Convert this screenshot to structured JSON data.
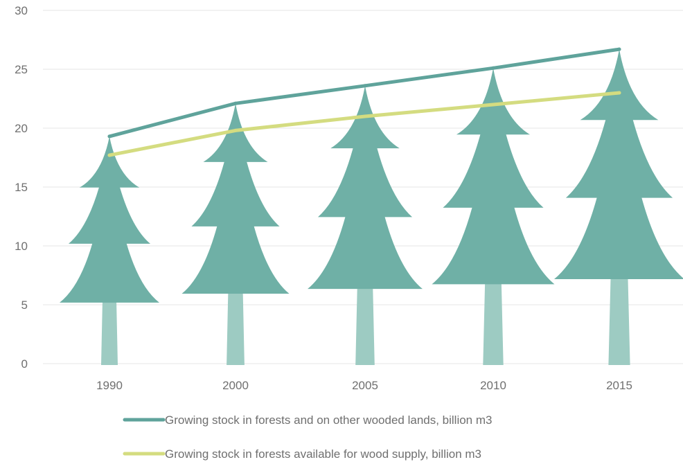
{
  "chart_data": {
    "type": "line",
    "categories": [
      "1990",
      "2000",
      "2005",
      "2010",
      "2015"
    ],
    "ylim": [
      0,
      30
    ],
    "yticks": [
      0,
      5,
      10,
      15,
      20,
      25,
      30
    ],
    "grid": true,
    "legend_position": "bottom",
    "series": [
      {
        "name": "Growing stock in forests and on other wooded lands, billion m3",
        "values": [
          19.3,
          22.1,
          23.6,
          25.1,
          26.7
        ],
        "color": "#5fa39b"
      },
      {
        "name": "Growing stock in forests available for wood supply, billion m3",
        "values": [
          17.7,
          19.8,
          21.0,
          22.0,
          23.0
        ],
        "color": "#d4dc80"
      }
    ],
    "pictogram": {
      "icon": "tree-icon",
      "tree_color": "#6fb0a6",
      "trunk_color": "#9dcbc2"
    }
  }
}
